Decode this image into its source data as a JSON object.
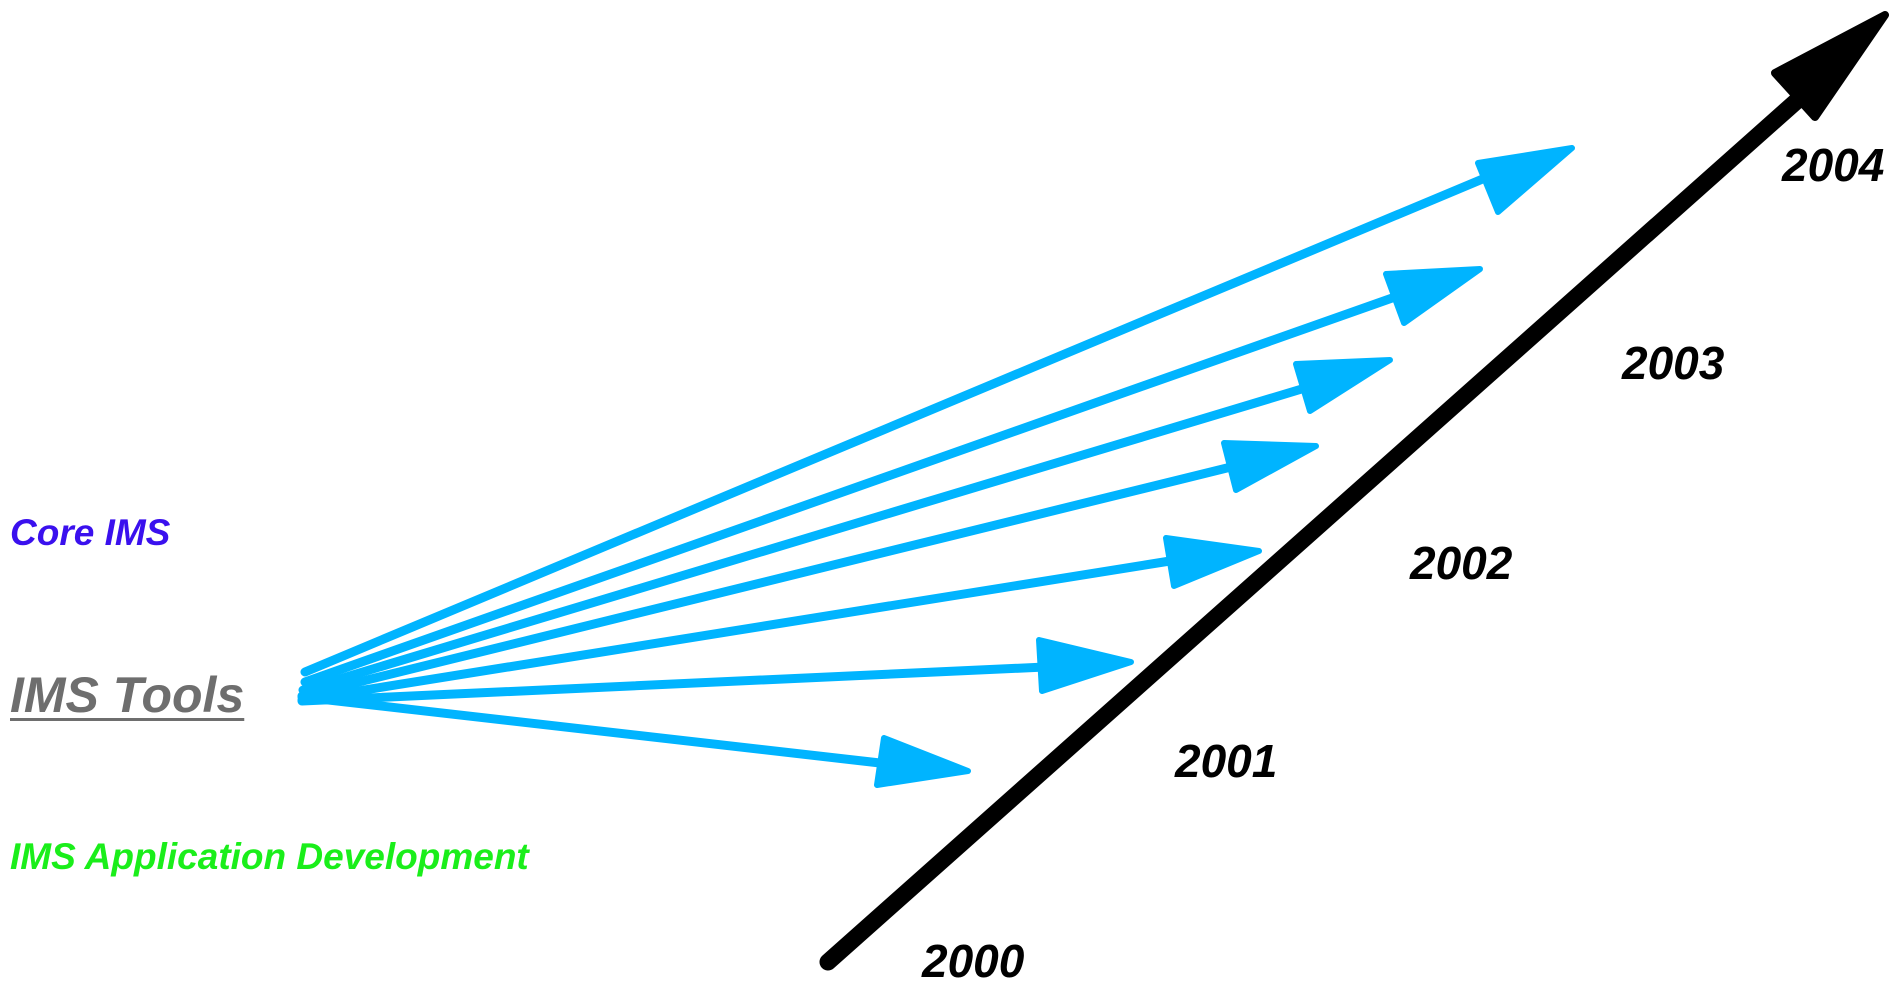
{
  "labels": {
    "core_ims": "Core IMS",
    "ims_tools": "IMS Tools",
    "ims_app_dev": "IMS Application Development"
  },
  "timeline": {
    "years": [
      "2000",
      "2001",
      "2002",
      "2003",
      "2004"
    ]
  },
  "colors": {
    "core_ims": "#3a10ee",
    "ims_tools": "#6e6e6e",
    "ims_app_dev": "#1aee1a",
    "arrows": "#00b4ff",
    "timeline": "#000000",
    "years": "#000000"
  }
}
